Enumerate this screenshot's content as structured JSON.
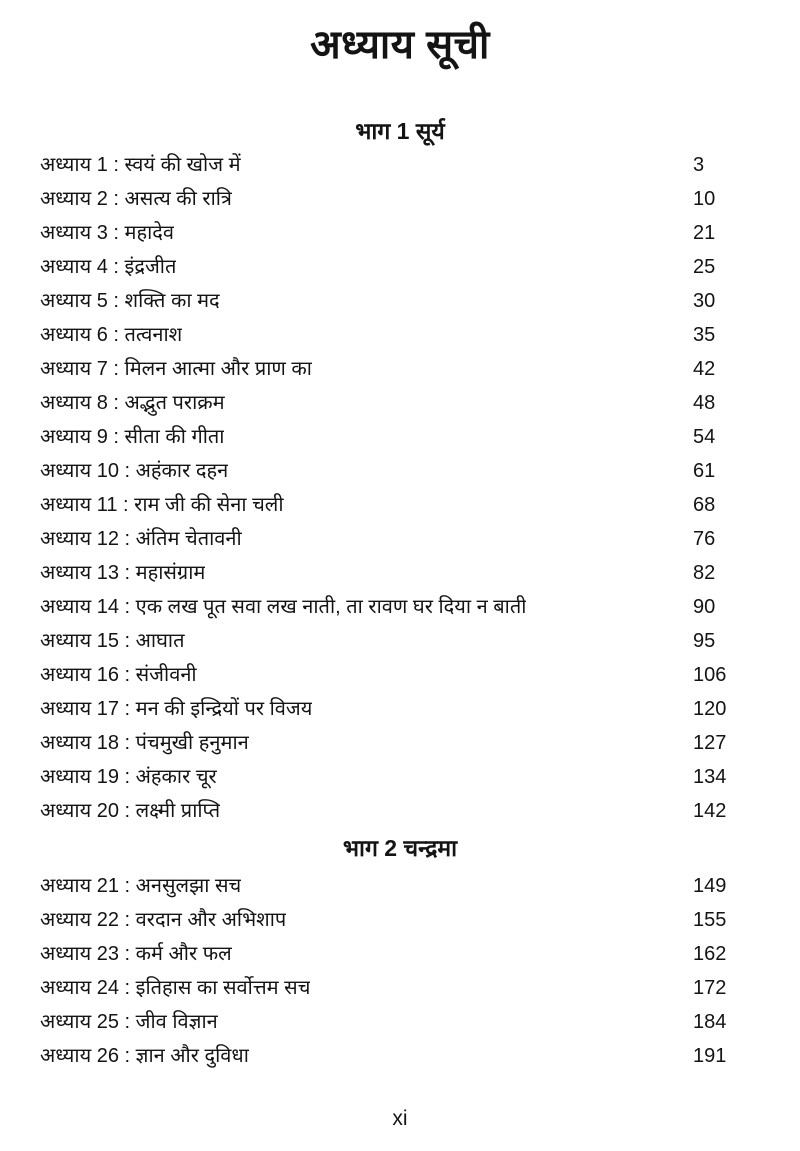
{
  "page": {
    "title": "अध्याय सूची",
    "footer_page_number": "xi",
    "text_color": "#141414",
    "background_color": "#ffffff"
  },
  "sections": [
    {
      "heading": "भाग 1 सूर्य",
      "chapters": [
        {
          "label": "अध्याय 1 : स्वयं की खोज में",
          "page": "3"
        },
        {
          "label": "अध्याय 2 : असत्य की रात्रि",
          "page": "10"
        },
        {
          "label": "अध्याय 3 : महादेव",
          "page": "21"
        },
        {
          "label": "अध्याय 4 : इंद्रजीत",
          "page": "25"
        },
        {
          "label": "अध्याय 5 : शक्ति का मद",
          "page": "30"
        },
        {
          "label": "अध्याय 6 : तत्वनाश",
          "page": "35"
        },
        {
          "label": "अध्याय 7 : मिलन आत्मा और प्राण का",
          "page": "42"
        },
        {
          "label": "अध्याय 8 : अद्भुत पराक्रम",
          "page": "48"
        },
        {
          "label": "अध्याय 9 : सीता की गीता",
          "page": "54"
        },
        {
          "label": "अध्याय 10 : अहंकार दहन",
          "page": "61"
        },
        {
          "label": "अध्याय 11 : राम जी की सेना चली",
          "page": "68"
        },
        {
          "label": "अध्याय 12 : अंतिम चेतावनी",
          "page": "76"
        },
        {
          "label": "अध्याय 13 : महासंग्राम",
          "page": "82"
        },
        {
          "label": "अध्याय 14 : एक लख पूत सवा लख नाती, ता रावण घर दिया न बाती",
          "page": "90"
        },
        {
          "label": "अध्याय 15 : आघात",
          "page": "95"
        },
        {
          "label": "अध्याय 16 : संजीवनी",
          "page": "106"
        },
        {
          "label": "अध्याय 17 : मन की इन्द्रियों पर विजय",
          "page": "120"
        },
        {
          "label": "अध्याय 18 : पंचमुखी हनुमान",
          "page": "127"
        },
        {
          "label": "अध्याय 19 : अंहकार चूर",
          "page": "134"
        },
        {
          "label": "अध्याय 20 : लक्ष्मी प्राप्ति",
          "page": "142"
        }
      ]
    },
    {
      "heading": "भाग 2 चन्द्रमा",
      "chapters": [
        {
          "label": "अध्याय 21 : अनसुलझा सच",
          "page": "149"
        },
        {
          "label": "अध्याय 22 : वरदान और अभिशाप",
          "page": "155"
        },
        {
          "label": "अध्याय 23 : कर्म और फल",
          "page": "162"
        },
        {
          "label": "अध्याय 24 : इतिहास का सर्वोत्तम सच",
          "page": "172"
        },
        {
          "label": "अध्याय 25 : जीव विज्ञान",
          "page": "184"
        },
        {
          "label": "अध्याय 26 : ज्ञान और दुविधा",
          "page": "191"
        }
      ]
    }
  ]
}
